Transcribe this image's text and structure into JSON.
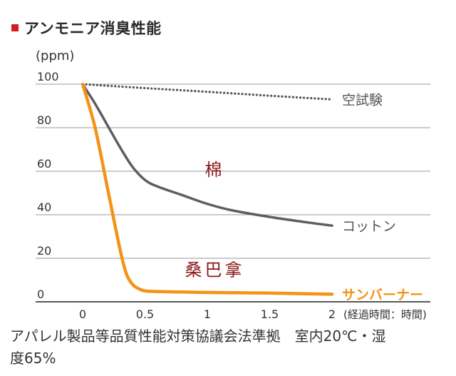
{
  "title": "アンモニア消臭性能",
  "colors": {
    "title_marker": "#d71920",
    "blank_test": "#555555",
    "cotton": "#5f5d63",
    "sunbana": "#f39317",
    "annotation": "#8b1a1a",
    "grid": "#999999"
  },
  "chart_data": {
    "type": "line",
    "ylabel": "(ppm)",
    "xlabel": "(経過時間：時間)",
    "xlim": [
      0,
      2
    ],
    "ylim": [
      0,
      100
    ],
    "x_ticks": [
      "0",
      "0.5",
      "1",
      "1.5",
      "2"
    ],
    "y_ticks": [
      "0",
      "20",
      "40",
      "60",
      "80",
      "100"
    ],
    "grid": true,
    "series": [
      {
        "name": "空試験",
        "style": "dotted",
        "color": "#555555",
        "x": [
          0,
          0.5,
          1,
          1.5,
          2
        ],
        "y": [
          100,
          98.2,
          96.5,
          94.7,
          93
        ]
      },
      {
        "name": "コットン",
        "style": "solid",
        "color": "#5f5d63",
        "x": [
          0,
          0.1,
          0.2,
          0.3,
          0.4,
          0.5,
          0.6,
          0.8,
          1,
          1.2,
          1.5,
          1.8,
          2
        ],
        "y": [
          100,
          91,
          81,
          71,
          62,
          56,
          53,
          49,
          45,
          42,
          39,
          36.5,
          35
        ]
      },
      {
        "name": "サンバーナー",
        "style": "solid",
        "color": "#f39317",
        "x": [
          0,
          0.1,
          0.2,
          0.3,
          0.35,
          0.4,
          0.45,
          0.5,
          0.6,
          0.8,
          1,
          1.5,
          2
        ],
        "y": [
          100,
          80,
          52,
          24,
          13,
          8,
          6,
          5,
          4.7,
          4.5,
          4.3,
          4,
          3.5
        ]
      }
    ],
    "annotations": [
      {
        "text": "棉",
        "x": 0.98,
        "y": 58
      },
      {
        "text": "桑巴拿",
        "x": 0.82,
        "y": 12
      }
    ]
  },
  "footer_line1": "アパレル製品等品質性能対策協議会法準拠　室内20℃・湿",
  "footer_line2": "度65%"
}
